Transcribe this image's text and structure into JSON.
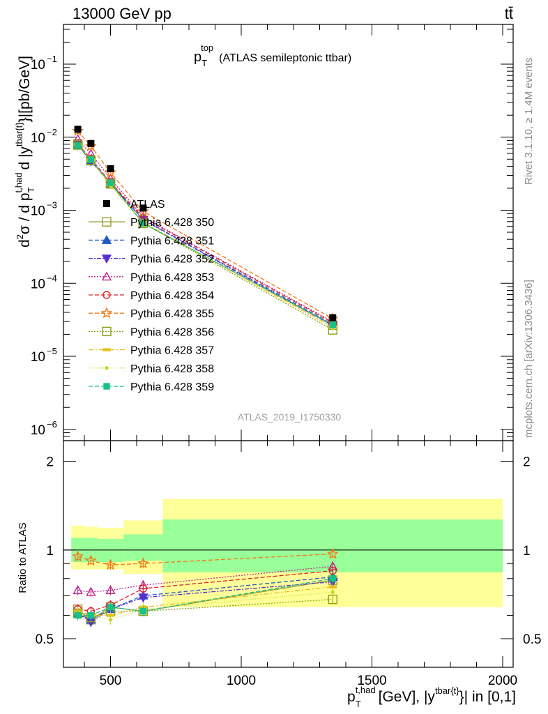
{
  "header": {
    "energy_label": "13000 GeV pp",
    "process_label": "tt̄",
    "side_rivet": "Rivet 3.1.10, ≥ 1.4M events",
    "side_mcplots": "mcplots.cern.ch [arXiv:1306.3436]",
    "analysis_id": "ATLAS_2019_I1750330"
  },
  "chart_data": [
    {
      "type": "line",
      "title": "p_T^top (ATLAS semileptonic ttbar)",
      "title_main": "p",
      "title_sup": "top",
      "title_sub": "T",
      "title_rest": "(ATLAS semileptonic ttbar)",
      "ylabel": "d²σ / d p_T^{t,had} d |y^{tbar{t}}| [pb/GeV]",
      "ylabel_parts": {
        "a": "d",
        "a_sup": "2",
        "b": "σ / d p",
        "b_sub": "T",
        "b_sup": "t,had",
        "c": "d |y",
        "c_sup": "tbar{t}",
        "d": "}|[pb/GeV]"
      },
      "yscale": "log",
      "ylim": [
        7e-07,
        0.35
      ],
      "xlim": [
        320,
        2040
      ],
      "y_ticks": [
        {
          "value": 0.1,
          "base": "10",
          "exp": "−1"
        },
        {
          "value": 0.01,
          "base": "10",
          "exp": "−2"
        },
        {
          "value": 0.001,
          "base": "10",
          "exp": "−3"
        },
        {
          "value": 0.0001,
          "base": "10",
          "exp": "−4"
        },
        {
          "value": 1e-05,
          "base": "10",
          "exp": "−5"
        },
        {
          "value": 1e-06,
          "base": "10",
          "exp": "−6"
        }
      ],
      "x": [
        375,
        425,
        500,
        625,
        1350
      ],
      "legend_placement": "center-left",
      "data": {
        "name": "ATLAS",
        "values": [
          0.0128,
          0.0082,
          0.0037,
          0.00107,
          3.38e-05
        ]
      },
      "series": [
        {
          "name": "Pythia 6.428 350",
          "color": "#9a9a2e",
          "marker": "square-open",
          "dash": "solid",
          "ratio": [
            0.63,
            0.58,
            0.64,
            0.62,
            0.79
          ]
        },
        {
          "name": "Pythia 6.428 351",
          "color": "#1f5cbf",
          "marker": "triangle-up",
          "dash": "6,3",
          "ratio": [
            0.61,
            0.58,
            0.63,
            0.7,
            0.81
          ]
        },
        {
          "name": "Pythia 6.428 352",
          "color": "#5a2ecf",
          "marker": "triangle-down",
          "dash": "6,2,2,2",
          "ratio": [
            0.61,
            0.57,
            0.63,
            0.69,
            0.78
          ]
        },
        {
          "name": "Pythia 6.428 353",
          "color": "#c0208c",
          "marker": "triangle-open",
          "dash": "2,2",
          "ratio": [
            0.73,
            0.72,
            0.73,
            0.76,
            0.88
          ]
        },
        {
          "name": "Pythia 6.428 354",
          "color": "#e0202a",
          "marker": "circle-open",
          "dash": "6,3",
          "ratio": [
            0.63,
            0.62,
            0.65,
            0.74,
            0.85
          ]
        },
        {
          "name": "Pythia 6.428 355",
          "color": "#f07a1a",
          "marker": "star-open",
          "dash": "6,3",
          "ratio": [
            0.95,
            0.92,
            0.89,
            0.9,
            0.97
          ]
        },
        {
          "name": "Pythia 6.428 356",
          "color": "#8aa011",
          "marker": "square-open",
          "dash": "2,2",
          "ratio": [
            0.61,
            0.59,
            0.62,
            0.62,
            0.68
          ]
        },
        {
          "name": "Pythia 6.428 357",
          "color": "#e8c01a",
          "marker": "dash-dot",
          "dash": "7,3,2,3",
          "ratio": [
            0.62,
            0.6,
            0.6,
            0.64,
            0.75
          ]
        },
        {
          "name": "Pythia 6.428 358",
          "color": "#c8d62a",
          "marker": "dot",
          "dash": "1,2",
          "ratio": [
            0.61,
            0.6,
            0.58,
            0.63,
            0.72
          ]
        },
        {
          "name": "Pythia 6.428 359",
          "color": "#18c08a",
          "marker": "square",
          "dash": "6,3",
          "ratio": [
            0.6,
            0.6,
            0.64,
            0.62,
            0.8
          ]
        }
      ]
    },
    {
      "type": "line",
      "ylabel": "Ratio to ATLAS",
      "yscale": "log",
      "ylim": [
        0.4,
        2.35
      ],
      "y_ticks": [
        0.5,
        1,
        2
      ],
      "xlabel": "p_T^{t,had} [GeV], |y^{tbar{t}}| in [0,1]",
      "xlabel_parts": {
        "a": "p",
        "a_sub": "T",
        "a_sup": "t,had",
        "b": "[GeV], |y",
        "b_sup": "tbar{t}",
        "c": "}| in [0,1]"
      },
      "x_ticks": [
        500,
        1000,
        1500,
        2000
      ],
      "reference_line": 1,
      "bin_edges": [
        350,
        400,
        450,
        550,
        700,
        2000
      ],
      "band_stat": [
        [
          0.91,
          1.1
        ],
        [
          0.91,
          1.1
        ],
        [
          0.91,
          1.09
        ],
        [
          0.92,
          1.13
        ],
        [
          0.84,
          1.27
        ]
      ],
      "band_total": [
        [
          0.86,
          1.21
        ],
        [
          0.86,
          1.2
        ],
        [
          0.86,
          1.19
        ],
        [
          0.83,
          1.26
        ],
        [
          0.64,
          1.49
        ]
      ],
      "band_colors": {
        "stat": "#99ff99",
        "total": "#ffff99"
      }
    }
  ]
}
